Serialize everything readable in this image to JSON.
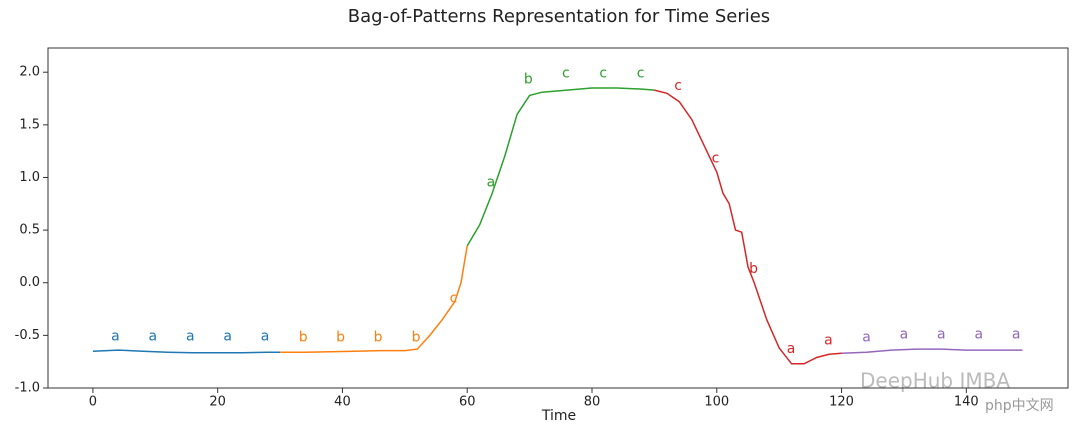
{
  "chart_data": {
    "type": "line",
    "title": "Bag-of-Patterns Representation for Time Series",
    "x_label": "Time",
    "xlim": [
      -7.2,
      156.3
    ],
    "ylim": [
      -1.0,
      2.23
    ],
    "xticks": [
      0,
      20,
      40,
      60,
      80,
      100,
      120,
      140
    ],
    "yticks": [
      {
        "value": -1.0,
        "label": "-1.0"
      },
      -0.5,
      {
        "value": 0.0,
        "label": "0.0"
      },
      0.5,
      {
        "value": 1.0,
        "label": "1.0"
      },
      1.5,
      {
        "value": 2.0,
        "label": "2.0"
      }
    ],
    "series": [
      {
        "color": "#1f77b4",
        "x": [
          0,
          4,
          8,
          12,
          16,
          20,
          24,
          28,
          30
        ],
        "values": [
          -0.65,
          -0.64,
          -0.65,
          -0.66,
          -0.665,
          -0.665,
          -0.665,
          -0.66,
          -0.66
        ]
      },
      {
        "color": "#ff7f0e",
        "x": [
          30,
          34,
          38,
          42,
          46,
          50,
          52,
          54,
          56,
          58,
          59,
          60
        ],
        "values": [
          -0.66,
          -0.66,
          -0.655,
          -0.65,
          -0.645,
          -0.645,
          -0.63,
          -0.5,
          -0.35,
          -0.18,
          0.0,
          0.35
        ]
      },
      {
        "color": "#2ca02c",
        "x": [
          60,
          62,
          64,
          66,
          68,
          70,
          72,
          76,
          80,
          84,
          88,
          90
        ],
        "values": [
          0.35,
          0.55,
          0.85,
          1.2,
          1.6,
          1.78,
          1.81,
          1.83,
          1.85,
          1.85,
          1.84,
          1.83
        ]
      },
      {
        "color": "#d62728",
        "x": [
          90,
          92,
          94,
          96,
          98,
          100,
          101,
          102,
          103,
          104,
          105,
          106,
          108,
          110,
          112,
          114,
          116,
          118,
          120
        ],
        "values": [
          1.83,
          1.8,
          1.72,
          1.55,
          1.3,
          1.05,
          0.85,
          0.75,
          0.5,
          0.48,
          0.15,
          0.0,
          -0.35,
          -0.62,
          -0.77,
          -0.77,
          -0.71,
          -0.68,
          -0.67
        ]
      },
      {
        "color": "#9467bd",
        "x": [
          120,
          124,
          128,
          132,
          136,
          140,
          144,
          149
        ],
        "values": [
          -0.67,
          -0.66,
          -0.64,
          -0.63,
          -0.63,
          -0.64,
          -0.64,
          -0.64
        ]
      }
    ],
    "annotations": [
      {
        "text": "a",
        "x": 3.6,
        "y": -0.51,
        "color": "#1f77b4"
      },
      {
        "text": "a",
        "x": 9.6,
        "y": -0.51,
        "color": "#1f77b4"
      },
      {
        "text": "a",
        "x": 15.6,
        "y": -0.51,
        "color": "#1f77b4"
      },
      {
        "text": "a",
        "x": 21.6,
        "y": -0.51,
        "color": "#1f77b4"
      },
      {
        "text": "a",
        "x": 27.6,
        "y": -0.51,
        "color": "#1f77b4"
      },
      {
        "text": "b",
        "x": 33.7,
        "y": -0.52,
        "color": "#ff7f0e"
      },
      {
        "text": "b",
        "x": 39.7,
        "y": -0.52,
        "color": "#ff7f0e"
      },
      {
        "text": "b",
        "x": 45.7,
        "y": -0.52,
        "color": "#ff7f0e"
      },
      {
        "text": "b",
        "x": 51.8,
        "y": -0.52,
        "color": "#ff7f0e"
      },
      {
        "text": "c",
        "x": 57.8,
        "y": -0.15,
        "color": "#ff7f0e"
      },
      {
        "text": "a",
        "x": 63.8,
        "y": 0.95,
        "color": "#2ca02c"
      },
      {
        "text": "b",
        "x": 69.8,
        "y": 1.93,
        "color": "#2ca02c"
      },
      {
        "text": "c",
        "x": 75.8,
        "y": 1.99,
        "color": "#2ca02c"
      },
      {
        "text": "c",
        "x": 81.8,
        "y": 1.99,
        "color": "#2ca02c"
      },
      {
        "text": "c",
        "x": 87.8,
        "y": 1.99,
        "color": "#2ca02c"
      },
      {
        "text": "c",
        "x": 93.8,
        "y": 1.87,
        "color": "#d62728"
      },
      {
        "text": "c",
        "x": 99.8,
        "y": 1.18,
        "color": "#d62728"
      },
      {
        "text": "b",
        "x": 105.9,
        "y": 0.13,
        "color": "#d62728"
      },
      {
        "text": "a",
        "x": 111.9,
        "y": -0.63,
        "color": "#d62728"
      },
      {
        "text": "a",
        "x": 117.9,
        "y": -0.55,
        "color": "#d62728"
      },
      {
        "text": "a",
        "x": 124,
        "y": -0.52,
        "color": "#9467bd"
      },
      {
        "text": "a",
        "x": 130,
        "y": -0.49,
        "color": "#9467bd"
      },
      {
        "text": "a",
        "x": 136,
        "y": -0.49,
        "color": "#9467bd"
      },
      {
        "text": "a",
        "x": 142,
        "y": -0.49,
        "color": "#9467bd"
      },
      {
        "text": "a",
        "x": 148,
        "y": -0.49,
        "color": "#9467bd"
      }
    ],
    "watermark": "DeepHub IMBA",
    "watermark2": "php中文网"
  }
}
